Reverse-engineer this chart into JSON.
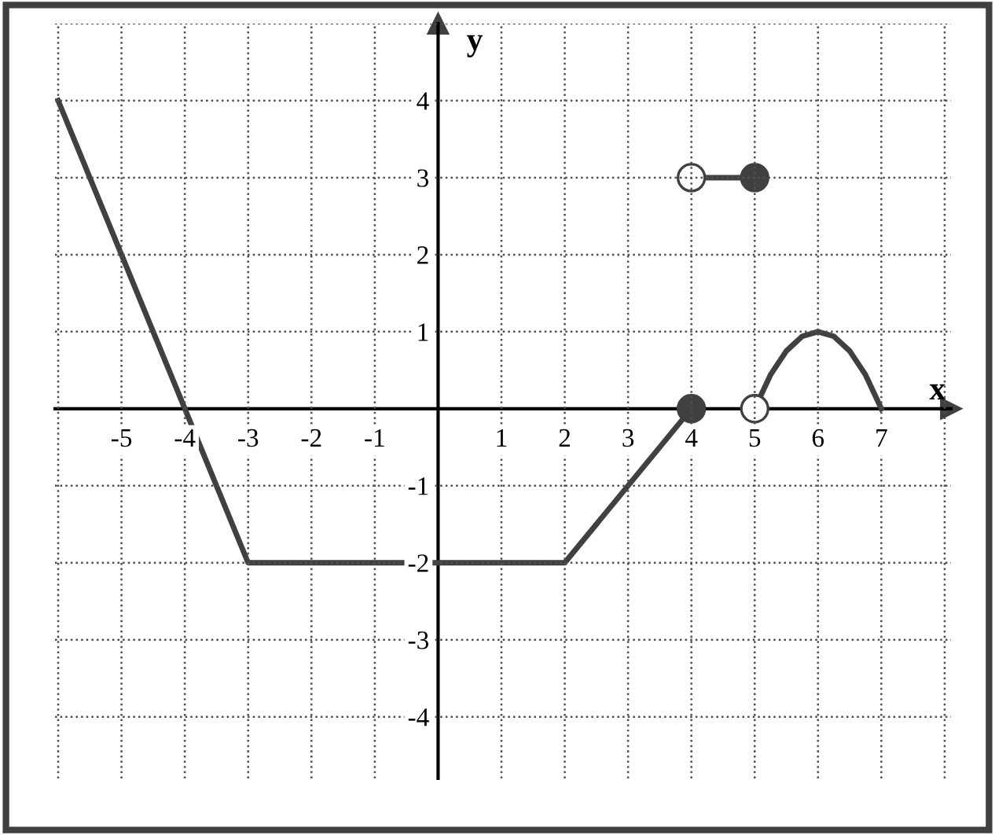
{
  "chart_data": {
    "type": "line",
    "xlabel": "x",
    "ylabel": "y",
    "xlim": [
      -6.05,
      8.1
    ],
    "ylim": [
      -4.8,
      5
    ],
    "xticks": [
      {
        "value": -6,
        "label": null
      },
      -5,
      -4,
      -3,
      -2,
      -1,
      1,
      2,
      3,
      4,
      5,
      6,
      7,
      {
        "value": 8,
        "label": null
      }
    ],
    "yticks": [
      -4,
      -3,
      -2,
      -1,
      1,
      2,
      3,
      4,
      {
        "value": 5,
        "label": null
      }
    ],
    "grid": true,
    "legend": false,
    "series": [
      {
        "color": "#404040",
        "x": [
          -6,
          -3,
          2,
          4
        ],
        "values": [
          4,
          -2,
          -2,
          0
        ]
      },
      {
        "color": "#404040",
        "x": [
          4,
          5
        ],
        "values": [
          3,
          3
        ]
      },
      {
        "color": "#404040",
        "x": [
          5,
          5.25,
          5.5,
          5.75,
          6,
          6.25,
          6.5,
          6.75,
          7
        ],
        "values": [
          0,
          0.44,
          0.75,
          0.94,
          1,
          0.94,
          0.75,
          0.44,
          0
        ]
      },
      {
        "type": "scatter",
        "color": "#404040",
        "marker": "circle",
        "x": [
          4,
          5
        ],
        "values": [
          0,
          3
        ]
      },
      {
        "type": "scatter",
        "color": "#ffffff",
        "marker": "circle",
        "x": [
          4,
          5
        ],
        "values": [
          3,
          0
        ]
      }
    ]
  }
}
